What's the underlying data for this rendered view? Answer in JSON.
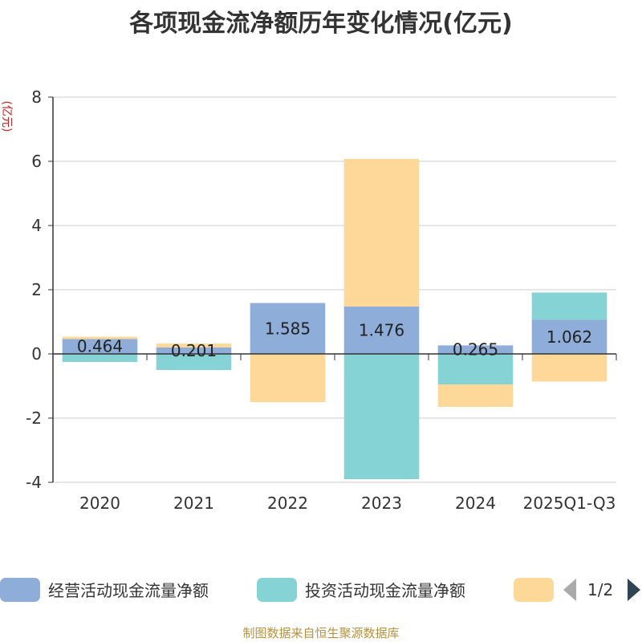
{
  "chart_data": {
    "type": "bar",
    "stacked": true,
    "title": "各项现金流净额历年变化情况(亿元)",
    "ylabel": "(亿元)",
    "xlabel": "",
    "ylim": [
      -4,
      8
    ],
    "yticks": [
      -4,
      -2,
      0,
      2,
      4,
      6,
      8
    ],
    "categories": [
      "2020",
      "2021",
      "2022",
      "2023",
      "2024",
      "2025Q1-Q3"
    ],
    "series": [
      {
        "name": "经营活动现金流量净额",
        "color": "#8eadd9",
        "values": [
          0.464,
          0.201,
          1.585,
          1.476,
          0.265,
          1.062
        ],
        "labels": [
          "0.464",
          "0.201",
          "1.585",
          "1.476",
          "0.265",
          "1.062"
        ]
      },
      {
        "name": "投资活动现金流量净额",
        "color": "#86d3d5",
        "values": [
          -0.25,
          -0.5,
          0,
          -3.9,
          -0.95,
          0.85
        ]
      },
      {
        "name": "",
        "color": "#fdd898",
        "values": [
          0.07,
          0.12,
          -1.5,
          4.6,
          -0.7,
          -0.86
        ]
      }
    ],
    "legend": {
      "placement": "bottom",
      "page": "1/2"
    }
  },
  "footer": "制图数据来自恒生聚源数据库"
}
